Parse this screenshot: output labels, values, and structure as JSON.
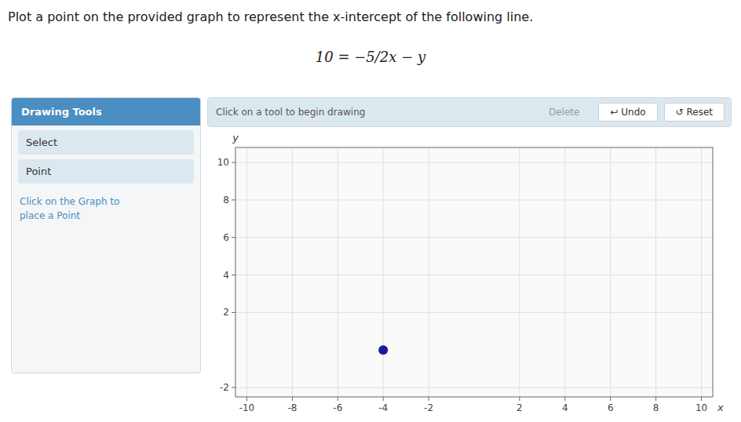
{
  "chart_data": {
    "type": "scatter",
    "title": "Plot a point on the provided graph to represent the x-intercept of the following line.",
    "subtitle": "10 = −5/2x − y",
    "x_label": "x",
    "y_label": "y",
    "x": [
      -4
    ],
    "values": [
      0
    ],
    "color": "#1a1a99",
    "xlim": [
      -10.5,
      10.5
    ],
    "ylim": [
      -2.5,
      10.8
    ],
    "xticks": [
      -10,
      -8,
      -6,
      -4,
      -2,
      2,
      4,
      6,
      8,
      10
    ],
    "yticks": [
      -2,
      2,
      4,
      6,
      8,
      10
    ],
    "grid": true,
    "annotations": [
      "Drawing Tools",
      "Select",
      "Point",
      "Click on the Graph to\nplace a Point",
      "Click on a tool to begin drawing",
      "Delete",
      "↩ Undo",
      "↺ Reset"
    ]
  }
}
